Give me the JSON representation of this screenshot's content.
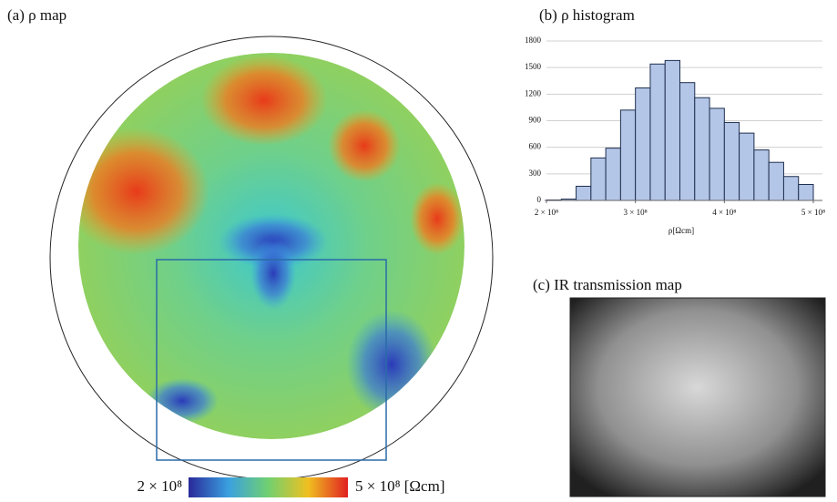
{
  "map_panel": {
    "title": "(a) ρ map",
    "colorbar": {
      "min_label": "2 × 10⁸",
      "max_label": "5 × 10⁸ [Ωcm]"
    }
  },
  "ir_panel": {
    "title": "(c) IR transmission map"
  },
  "chart_data": {
    "type": "histogram",
    "title": "(b) ρ histogram",
    "x_label": "ρ[Ωcm]",
    "bins": [
      200000000,
      216666667,
      233333333,
      250000000,
      266666667,
      283333333,
      300000000,
      316666667,
      333333333,
      350000000,
      366666667,
      383333333,
      400000000,
      416666667,
      433333333,
      450000000,
      466666667,
      483333333,
      500000000
    ],
    "values": [
      5,
      15,
      160,
      480,
      590,
      1020,
      1270,
      1540,
      1580,
      1330,
      1160,
      1040,
      880,
      760,
      570,
      430,
      270,
      180
    ],
    "color": "#b4c6e7",
    "edge_color": "#1f2f4f",
    "xlim": [
      200000000,
      500000000
    ],
    "xticks": [
      {
        "value": 200000000,
        "label": "2 × 10⁸"
      },
      {
        "value": 300000000,
        "label": "3 × 10⁸"
      },
      {
        "value": 400000000,
        "label": "4 × 10⁸"
      },
      {
        "value": 500000000,
        "label": "5 × 10⁸"
      }
    ],
    "ylim": [
      0,
      1800
    ],
    "yticks": [
      0,
      300,
      600,
      900,
      1200,
      1500,
      1800
    ],
    "grid": true
  }
}
